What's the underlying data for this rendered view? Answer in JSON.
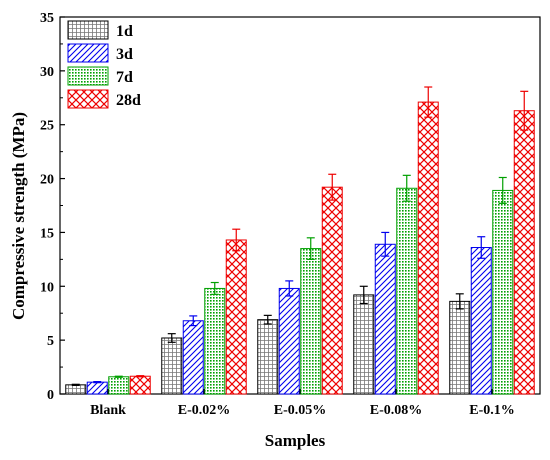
{
  "chart_data": {
    "type": "bar",
    "title": "",
    "xlabel": "Samples",
    "ylabel": "Compressive strength (MPa)",
    "ylim": [
      0,
      35
    ],
    "yticks": [
      0,
      5,
      10,
      15,
      20,
      25,
      30,
      35
    ],
    "grid": false,
    "legend_position": "top-left",
    "error_bars": true,
    "categories": [
      "Blank",
      "E-0.02%",
      "E-0.05%",
      "E-0.08%",
      "E-0.1%"
    ],
    "series": [
      {
        "name": "1d",
        "color": "#000000",
        "pattern": "grid",
        "values": [
          0.85,
          5.2,
          6.9,
          9.2,
          8.6
        ],
        "errors": [
          0.05,
          0.4,
          0.4,
          0.8,
          0.7
        ]
      },
      {
        "name": "3d",
        "color": "#0000ee",
        "pattern": "diagonal",
        "values": [
          1.1,
          6.8,
          9.8,
          13.9,
          13.6
        ],
        "errors": [
          0.05,
          0.45,
          0.7,
          1.1,
          1.0
        ]
      },
      {
        "name": "7d",
        "color": "#00a000",
        "pattern": "dots",
        "values": [
          1.6,
          9.8,
          13.5,
          19.1,
          18.9
        ],
        "errors": [
          0.05,
          0.55,
          1.0,
          1.2,
          1.2
        ]
      },
      {
        "name": "28d",
        "color": "#ee0000",
        "pattern": "crosshatch",
        "values": [
          1.65,
          14.3,
          19.2,
          27.1,
          26.3
        ],
        "errors": [
          0.05,
          1.0,
          1.2,
          1.4,
          1.8
        ]
      }
    ]
  }
}
